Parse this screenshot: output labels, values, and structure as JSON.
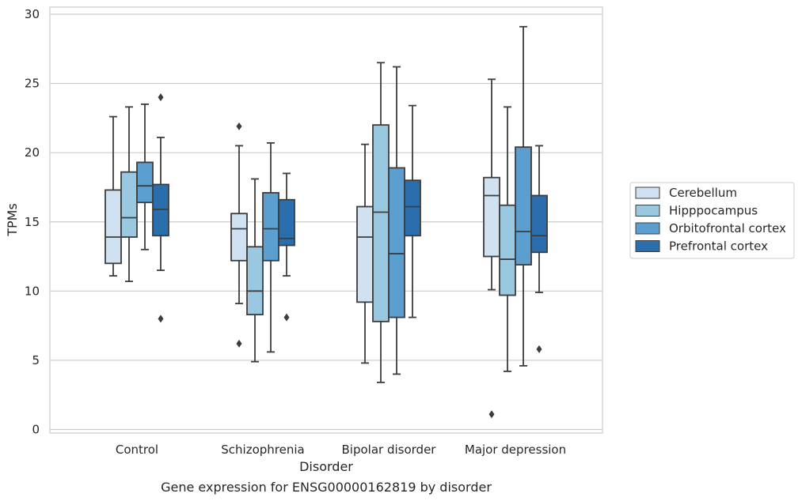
{
  "caption": "Gene expression for ENSG00000162819 by disorder",
  "chart_data": {
    "type": "box",
    "title": "",
    "xlabel": "Disorder",
    "ylabel": "TPMs",
    "ylim": [
      -0.3,
      30.5
    ],
    "yticks": [
      0,
      5,
      10,
      15,
      20,
      25,
      30
    ],
    "grid": "horizontal",
    "legend_position": "right",
    "categories": [
      "Control",
      "Schizophrenia",
      "Bipolar disorder",
      "Major depression"
    ],
    "series": [
      {
        "name": "Cerebellum",
        "color": "#d0e1f2",
        "boxes": [
          {
            "whislo": 11.1,
            "q1": 12.0,
            "med": 13.9,
            "q3": 17.3,
            "whishi": 22.6,
            "fliers": []
          },
          {
            "whislo": 9.1,
            "q1": 12.2,
            "med": 14.5,
            "q3": 15.6,
            "whishi": 20.5,
            "fliers": [
              21.9,
              6.2
            ]
          },
          {
            "whislo": 4.8,
            "q1": 9.2,
            "med": 13.9,
            "q3": 16.1,
            "whishi": 20.6,
            "fliers": []
          },
          {
            "whislo": 10.1,
            "q1": 12.5,
            "med": 16.9,
            "q3": 18.2,
            "whishi": 25.3,
            "fliers": [
              1.1
            ]
          }
        ]
      },
      {
        "name": "Hipppocampus",
        "color": "#9ac8e0",
        "boxes": [
          {
            "whislo": 10.7,
            "q1": 13.9,
            "med": 15.3,
            "q3": 18.6,
            "whishi": 23.3,
            "fliers": []
          },
          {
            "whislo": 4.9,
            "q1": 8.3,
            "med": 10.0,
            "q3": 13.2,
            "whishi": 18.1,
            "fliers": []
          },
          {
            "whislo": 3.4,
            "q1": 7.8,
            "med": 15.7,
            "q3": 22.0,
            "whishi": 26.5,
            "fliers": []
          },
          {
            "whislo": 4.2,
            "q1": 9.7,
            "med": 12.3,
            "q3": 16.2,
            "whishi": 23.3,
            "fliers": []
          }
        ]
      },
      {
        "name": "Orbitofrontal cortex",
        "color": "#5a9fcf",
        "boxes": [
          {
            "whislo": 13.0,
            "q1": 16.4,
            "med": 17.6,
            "q3": 19.3,
            "whishi": 23.5,
            "fliers": []
          },
          {
            "whislo": 5.6,
            "q1": 12.2,
            "med": 14.5,
            "q3": 17.1,
            "whishi": 20.7,
            "fliers": []
          },
          {
            "whislo": 4.0,
            "q1": 8.1,
            "med": 12.7,
            "q3": 18.9,
            "whishi": 26.2,
            "fliers": []
          },
          {
            "whislo": 4.6,
            "q1": 11.9,
            "med": 14.3,
            "q3": 20.4,
            "whishi": 29.1,
            "fliers": []
          }
        ]
      },
      {
        "name": "Prefrontal cortex",
        "color": "#2b6eae",
        "boxes": [
          {
            "whislo": 11.5,
            "q1": 14.0,
            "med": 15.9,
            "q3": 17.7,
            "whishi": 21.1,
            "fliers": [
              24.0,
              8.0
            ]
          },
          {
            "whislo": 11.1,
            "q1": 13.3,
            "med": 13.8,
            "q3": 16.6,
            "whishi": 18.5,
            "fliers": [
              8.1
            ]
          },
          {
            "whislo": 8.1,
            "q1": 14.0,
            "med": 16.1,
            "q3": 18.0,
            "whishi": 23.4,
            "fliers": []
          },
          {
            "whislo": 9.9,
            "q1": 12.8,
            "med": 14.0,
            "q3": 16.9,
            "whishi": 20.5,
            "fliers": [
              5.8
            ]
          }
        ]
      }
    ]
  }
}
